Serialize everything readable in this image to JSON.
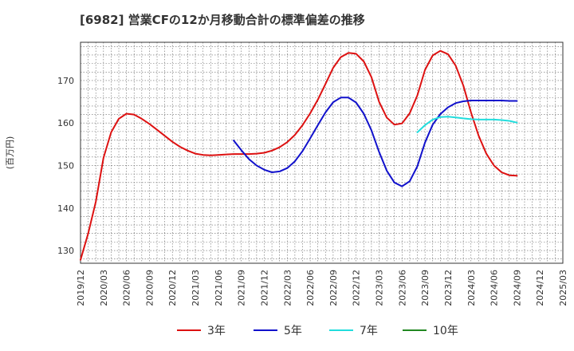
{
  "chart_data": {
    "type": "line",
    "title": "[6982]  営業CFの12か月移動合計の標準偏差の推移",
    "ylabel": "(百万円)",
    "xlabel": "",
    "ylim": [
      127,
      179
    ],
    "yticks": [
      130,
      140,
      150,
      160,
      170
    ],
    "xlim": [
      "2019-12",
      "2025-03"
    ],
    "xticks": [
      "2019/12",
      "2020/03",
      "2020/06",
      "2020/09",
      "2020/12",
      "2021/03",
      "2021/06",
      "2021/09",
      "2021/12",
      "2022/03",
      "2022/06",
      "2022/09",
      "2022/12",
      "2023/03",
      "2023/06",
      "2023/09",
      "2023/12",
      "2024/03",
      "2024/06",
      "2024/09",
      "2024/12",
      "2025/03"
    ],
    "grid": true,
    "legend_position": "bottom",
    "series": [
      {
        "name": "3年",
        "color": "#dd1111",
        "points": [
          [
            "2019-12",
            127.8
          ],
          [
            "2020-01",
            134.0
          ],
          [
            "2020-02",
            141.5
          ],
          [
            "2020-03",
            151.8
          ],
          [
            "2020-04",
            157.8
          ],
          [
            "2020-05",
            161.0
          ],
          [
            "2020-06",
            162.2
          ],
          [
            "2020-07",
            162.0
          ],
          [
            "2020-08",
            161.0
          ],
          [
            "2020-09",
            159.8
          ],
          [
            "2020-10",
            158.4
          ],
          [
            "2020-11",
            157.0
          ],
          [
            "2020-12",
            155.6
          ],
          [
            "2021-01",
            154.4
          ],
          [
            "2021-02",
            153.5
          ],
          [
            "2021-03",
            152.8
          ],
          [
            "2021-04",
            152.5
          ],
          [
            "2021-05",
            152.4
          ],
          [
            "2021-06",
            152.5
          ],
          [
            "2021-07",
            152.6
          ],
          [
            "2021-08",
            152.7
          ],
          [
            "2021-09",
            152.7
          ],
          [
            "2021-10",
            152.7
          ],
          [
            "2021-11",
            152.8
          ],
          [
            "2021-12",
            153.0
          ],
          [
            "2022-01",
            153.5
          ],
          [
            "2022-02",
            154.3
          ],
          [
            "2022-03",
            155.5
          ],
          [
            "2022-04",
            157.2
          ],
          [
            "2022-05",
            159.5
          ],
          [
            "2022-06",
            162.3
          ],
          [
            "2022-07",
            165.5
          ],
          [
            "2022-08",
            169.2
          ],
          [
            "2022-09",
            173.0
          ],
          [
            "2022-10",
            175.5
          ],
          [
            "2022-11",
            176.5
          ],
          [
            "2022-12",
            176.3
          ],
          [
            "2023-01",
            174.5
          ],
          [
            "2023-02",
            170.8
          ],
          [
            "2023-03",
            165.0
          ],
          [
            "2023-04",
            161.3
          ],
          [
            "2023-05",
            159.6
          ],
          [
            "2023-06",
            159.9
          ],
          [
            "2023-07",
            162.3
          ],
          [
            "2023-08",
            166.5
          ],
          [
            "2023-09",
            172.5
          ],
          [
            "2023-10",
            175.9
          ],
          [
            "2023-11",
            177.0
          ],
          [
            "2023-12",
            176.2
          ],
          [
            "2024-01",
            173.5
          ],
          [
            "2024-02",
            168.8
          ],
          [
            "2024-03",
            162.5
          ],
          [
            "2024-04",
            157.0
          ],
          [
            "2024-05",
            152.8
          ],
          [
            "2024-06",
            150.0
          ],
          [
            "2024-07",
            148.4
          ],
          [
            "2024-08",
            147.7
          ],
          [
            "2024-09",
            147.6
          ]
        ]
      },
      {
        "name": "5年",
        "color": "#1111cc",
        "points": [
          [
            "2021-08",
            155.9
          ],
          [
            "2021-09",
            153.6
          ],
          [
            "2021-10",
            151.5
          ],
          [
            "2021-11",
            150.0
          ],
          [
            "2021-12",
            149.0
          ],
          [
            "2022-01",
            148.4
          ],
          [
            "2022-02",
            148.6
          ],
          [
            "2022-03",
            149.4
          ],
          [
            "2022-04",
            151.0
          ],
          [
            "2022-05",
            153.4
          ],
          [
            "2022-06",
            156.4
          ],
          [
            "2022-07",
            159.5
          ],
          [
            "2022-08",
            162.5
          ],
          [
            "2022-09",
            164.9
          ],
          [
            "2022-10",
            166.0
          ],
          [
            "2022-11",
            166.0
          ],
          [
            "2022-12",
            164.8
          ],
          [
            "2023-01",
            162.2
          ],
          [
            "2023-02",
            158.3
          ],
          [
            "2023-03",
            153.2
          ],
          [
            "2023-04",
            148.8
          ],
          [
            "2023-05",
            146.0
          ],
          [
            "2023-06",
            145.1
          ],
          [
            "2023-07",
            146.3
          ],
          [
            "2023-08",
            149.8
          ],
          [
            "2023-09",
            155.4
          ],
          [
            "2023-10",
            159.6
          ],
          [
            "2023-11",
            162.1
          ],
          [
            "2023-12",
            163.7
          ],
          [
            "2024-01",
            164.7
          ],
          [
            "2024-02",
            165.1
          ],
          [
            "2024-03",
            165.3
          ],
          [
            "2024-04",
            165.3
          ],
          [
            "2024-05",
            165.3
          ],
          [
            "2024-06",
            165.3
          ],
          [
            "2024-07",
            165.3
          ],
          [
            "2024-08",
            165.2
          ],
          [
            "2024-09",
            165.2
          ]
        ]
      },
      {
        "name": "7年",
        "color": "#22dddd",
        "points": [
          [
            "2023-08",
            157.8
          ],
          [
            "2023-09",
            159.5
          ],
          [
            "2023-10",
            160.8
          ],
          [
            "2023-11",
            161.4
          ],
          [
            "2023-12",
            161.5
          ],
          [
            "2024-01",
            161.3
          ],
          [
            "2024-02",
            161.1
          ],
          [
            "2024-03",
            160.9
          ],
          [
            "2024-04",
            160.8
          ],
          [
            "2024-05",
            160.8
          ],
          [
            "2024-06",
            160.8
          ],
          [
            "2024-07",
            160.7
          ],
          [
            "2024-08",
            160.5
          ],
          [
            "2024-09",
            160.1
          ]
        ]
      },
      {
        "name": "10年",
        "color": "#228822",
        "points": []
      }
    ]
  }
}
